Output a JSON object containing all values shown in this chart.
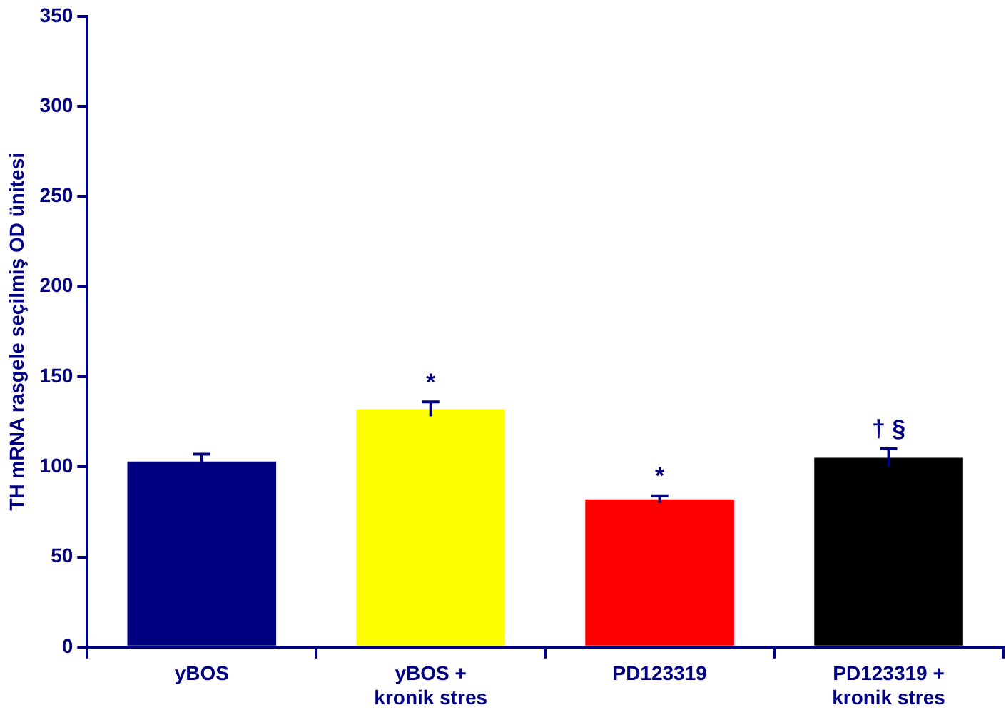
{
  "chart_data": {
    "type": "bar",
    "ylabel": "TH mRNA rasgele seçilmiş OD ünitesi",
    "categories": [
      "yBOS",
      "yBOS +\nkronik stres",
      "PD123319",
      "PD123319 +\nkronik stres"
    ],
    "values": [
      103,
      132,
      82,
      105
    ],
    "colors": [
      "#000080",
      "#ffff00",
      "#ff0000",
      "#000000"
    ],
    "errors": [
      4,
      4,
      2,
      5
    ],
    "ylim": [
      0,
      350
    ],
    "yticks": [
      0,
      50,
      100,
      150,
      200,
      250,
      300,
      350
    ],
    "grid": false,
    "legend": false,
    "annotations": [
      {
        "text": "*",
        "x": "yBOS +\nkronik stres",
        "y": 136
      },
      {
        "text": "*",
        "x": "PD123319",
        "y": 84
      },
      {
        "text": "† §",
        "x": "PD123319 +\nkronik stres",
        "y": 110
      }
    ]
  }
}
